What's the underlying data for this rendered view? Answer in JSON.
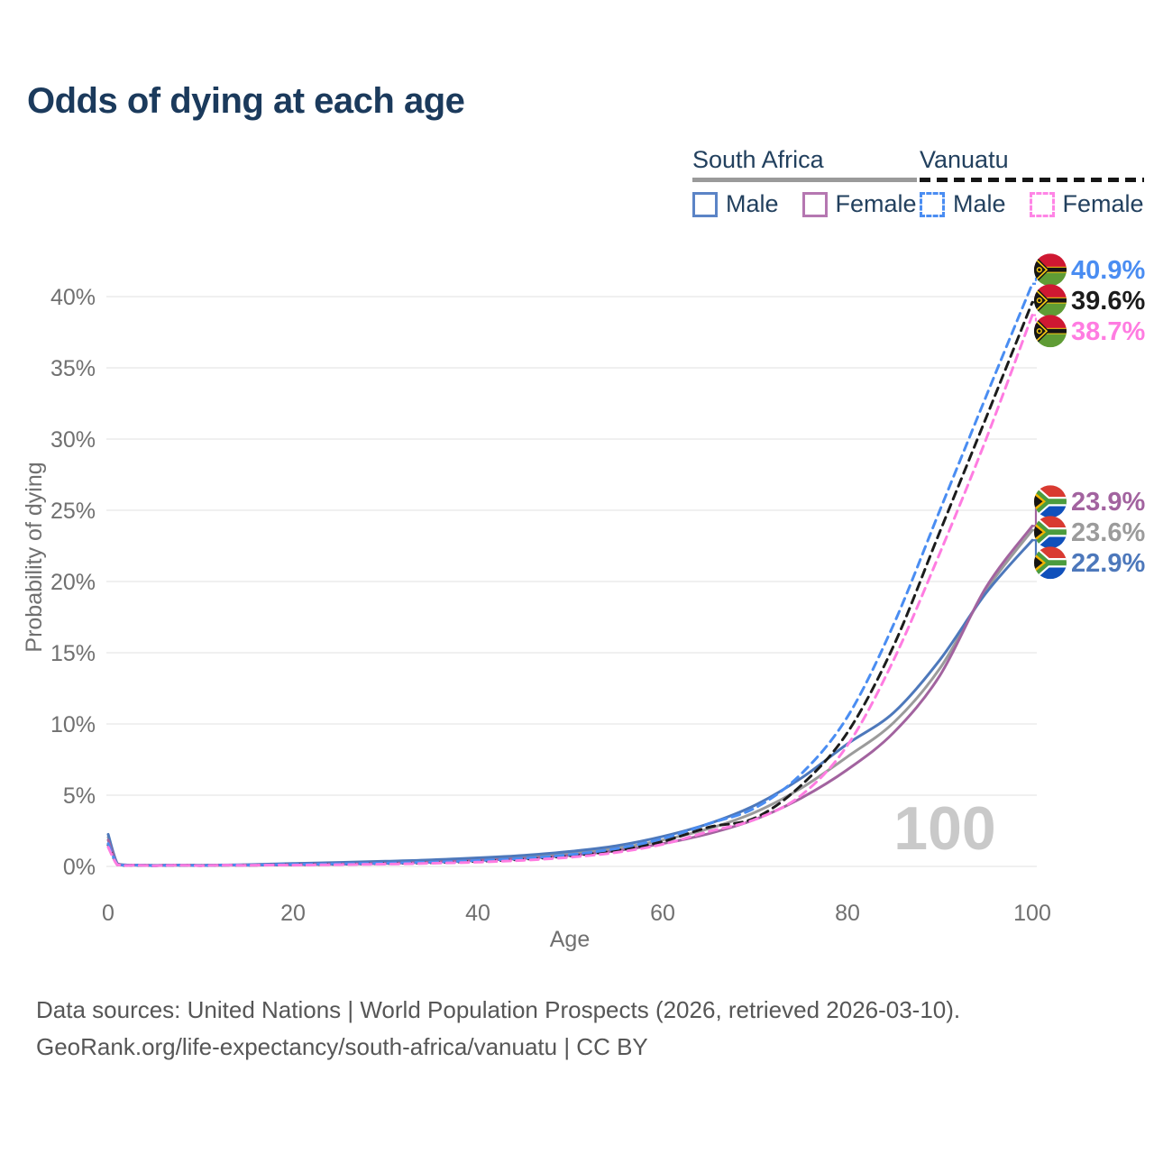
{
  "title": "Odds of dying at each age",
  "legend": {
    "groups": [
      {
        "name": "South Africa",
        "style": "solid",
        "underline_color": "#9a9a9a",
        "items": [
          {
            "label": "Male",
            "color": "#5b84c6"
          },
          {
            "label": "Female",
            "color": "#b577b1"
          }
        ]
      },
      {
        "name": "Vanuatu",
        "style": "dashed",
        "underline_color": "#161616",
        "items": [
          {
            "label": "Male",
            "color": "#4a8df2"
          },
          {
            "label": "Female",
            "color": "#ff85e6"
          }
        ]
      }
    ]
  },
  "chart_data": {
    "type": "line",
    "title": "Odds of dying at each age",
    "xlabel": "Age",
    "ylabel": "Probability of dying",
    "xlim": [
      0,
      100
    ],
    "ylim": [
      0,
      42
    ],
    "grid": true,
    "legend_position": "top-right",
    "watermark": "100",
    "xticks": [
      0,
      20,
      40,
      60,
      80,
      100
    ],
    "yticks": [
      {
        "value": 0,
        "label": "0%"
      },
      {
        "value": 5,
        "label": "5%"
      },
      {
        "value": 10,
        "label": "10%"
      },
      {
        "value": 15,
        "label": "15%"
      },
      {
        "value": 20,
        "label": "20%"
      },
      {
        "value": 25,
        "label": "25%"
      },
      {
        "value": 30,
        "label": "30%"
      },
      {
        "value": 35,
        "label": "35%"
      },
      {
        "value": 40,
        "label": "40%"
      }
    ],
    "x": [
      0,
      1,
      2,
      5,
      10,
      15,
      20,
      25,
      30,
      35,
      40,
      45,
      50,
      55,
      60,
      65,
      70,
      75,
      80,
      85,
      90,
      95,
      100
    ],
    "series": [
      {
        "name": "South Africa — Total",
        "country": "South Africa",
        "sex": "total",
        "color": "#9b9b9b",
        "dash": false,
        "flag": "south-africa",
        "end_label": "23.6%",
        "values": [
          2.05,
          0.17,
          0.09,
          0.065,
          0.07,
          0.1,
          0.16,
          0.22,
          0.29,
          0.38,
          0.5,
          0.67,
          0.91,
          1.27,
          1.85,
          2.65,
          3.8,
          5.5,
          7.7,
          10.1,
          13.9,
          19.4,
          23.6
        ]
      },
      {
        "name": "South Africa — Male",
        "country": "South Africa",
        "sex": "male",
        "color": "#4d78bb",
        "dash": false,
        "flag": "south-africa",
        "end_label": "22.9%",
        "values": [
          2.25,
          0.18,
          0.1,
          0.07,
          0.08,
          0.12,
          0.2,
          0.28,
          0.36,
          0.46,
          0.6,
          0.78,
          1.05,
          1.45,
          2.1,
          3.0,
          4.3,
          6.2,
          8.6,
          10.8,
          14.5,
          19.2,
          22.9
        ]
      },
      {
        "name": "South Africa — Female",
        "country": "South Africa",
        "sex": "female",
        "color": "#a2639f",
        "dash": false,
        "flag": "south-africa",
        "end_label": "23.9%",
        "values": [
          1.85,
          0.15,
          0.08,
          0.06,
          0.06,
          0.08,
          0.11,
          0.15,
          0.21,
          0.29,
          0.41,
          0.56,
          0.78,
          1.1,
          1.6,
          2.3,
          3.3,
          4.8,
          6.8,
          9.4,
          13.4,
          19.6,
          23.9
        ]
      },
      {
        "name": "Vanuatu — Total",
        "country": "Vanuatu",
        "sex": "total",
        "color": "#1c1c1c",
        "dash": true,
        "flag": "vanuatu",
        "end_label": "39.6%",
        "values": [
          1.5,
          0.11,
          0.065,
          0.045,
          0.055,
          0.08,
          0.12,
          0.15,
          0.2,
          0.26,
          0.36,
          0.5,
          0.74,
          1.12,
          1.75,
          2.75,
          3.4,
          5.7,
          9.4,
          15.5,
          23.5,
          31.5,
          39.6
        ]
      },
      {
        "name": "Vanuatu — Male",
        "country": "Vanuatu",
        "sex": "male",
        "color": "#4a8df2",
        "dash": true,
        "flag": "vanuatu",
        "end_label": "40.9%",
        "values": [
          1.6,
          0.12,
          0.07,
          0.05,
          0.06,
          0.09,
          0.14,
          0.18,
          0.23,
          0.3,
          0.41,
          0.57,
          0.83,
          1.25,
          1.95,
          3.0,
          4.1,
          6.5,
          10.5,
          17.0,
          25.0,
          33.0,
          40.9
        ]
      },
      {
        "name": "Vanuatu — Female",
        "country": "Vanuatu",
        "sex": "female",
        "color": "#ff7ce1",
        "dash": true,
        "flag": "vanuatu",
        "end_label": "38.7%",
        "values": [
          1.35,
          0.1,
          0.06,
          0.04,
          0.05,
          0.07,
          0.09,
          0.12,
          0.16,
          0.22,
          0.3,
          0.43,
          0.64,
          0.98,
          1.55,
          2.45,
          3.3,
          5.0,
          8.5,
          14.5,
          22.0,
          30.0,
          38.7
        ]
      }
    ]
  },
  "footer": {
    "line1": "Data sources: United Nations | World Population Prospects (2026, retrieved 2026-03-10).",
    "line2": "GeoRank.org/life-expectancy/south-africa/vanuatu | CC BY"
  }
}
